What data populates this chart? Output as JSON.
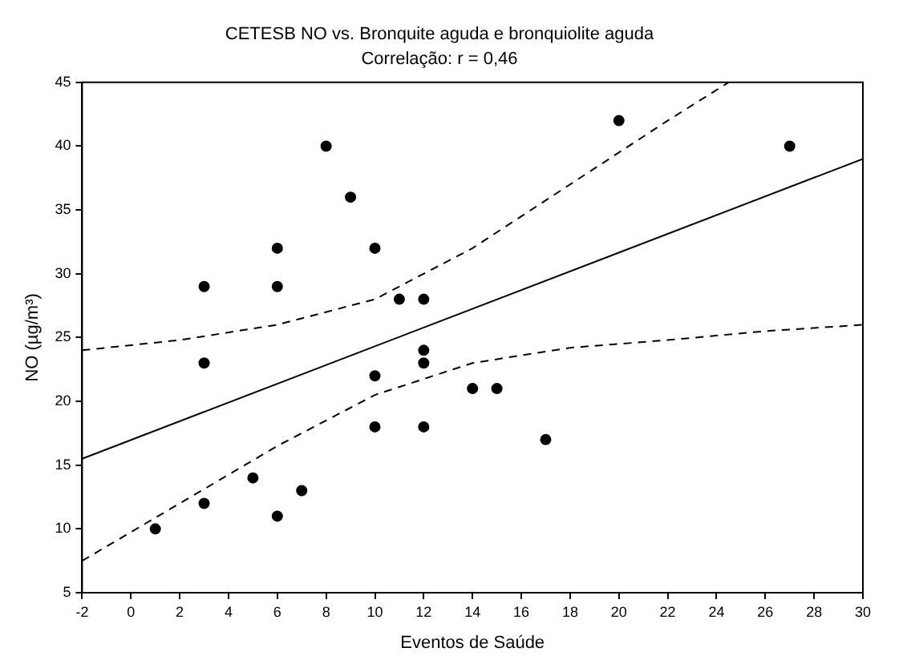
{
  "chart_data": {
    "type": "scatter",
    "title": "CETESB NO vs. Bronquite aguda e bronquiolite aguda",
    "subtitle": "Correlação: r = 0,46",
    "xlabel": "Eventos de Saúde",
    "ylabel": "NO (µg/m³)",
    "xlim": [
      -2,
      30
    ],
    "xticks": [
      -2,
      0,
      2,
      4,
      6,
      8,
      10,
      12,
      14,
      16,
      18,
      20,
      22,
      24,
      26,
      28,
      30
    ],
    "ylim": [
      5,
      45
    ],
    "yticks": [
      5,
      10,
      15,
      20,
      25,
      30,
      35,
      40,
      45
    ],
    "grid": false,
    "legend": false,
    "series": [
      {
        "type": "scatter",
        "color": "#000000",
        "marker": "circle",
        "x": [
          1,
          3,
          3,
          3,
          5,
          6,
          6,
          6,
          7,
          8,
          9,
          10,
          10,
          10,
          11,
          12,
          12,
          12,
          12,
          14,
          15,
          17,
          20,
          27
        ],
        "values": [
          10,
          29,
          23,
          12,
          14,
          32,
          29,
          11,
          13,
          40,
          36,
          32,
          22,
          18,
          28,
          28,
          24,
          23,
          18,
          21,
          21,
          17,
          42,
          40
        ]
      },
      {
        "type": "line",
        "color": "#000000",
        "marker": "none",
        "line_style": "solid",
        "x": [
          -2,
          30
        ],
        "values": [
          15.5,
          39
        ]
      },
      {
        "type": "line",
        "color": "#000000",
        "marker": "none",
        "line_style": "dashed",
        "x": [
          -2,
          2,
          6,
          10,
          14,
          18,
          22,
          24.5
        ],
        "values": [
          24,
          24.8,
          26,
          28,
          32,
          37,
          42,
          45
        ]
      },
      {
        "type": "line",
        "color": "#000000",
        "marker": "none",
        "line_style": "dashed",
        "x": [
          -2,
          2,
          6,
          10,
          14,
          18,
          22,
          26,
          30
        ],
        "values": [
          7.5,
          12,
          16.5,
          20.5,
          23,
          24.2,
          24.8,
          25.5,
          26
        ]
      }
    ]
  }
}
